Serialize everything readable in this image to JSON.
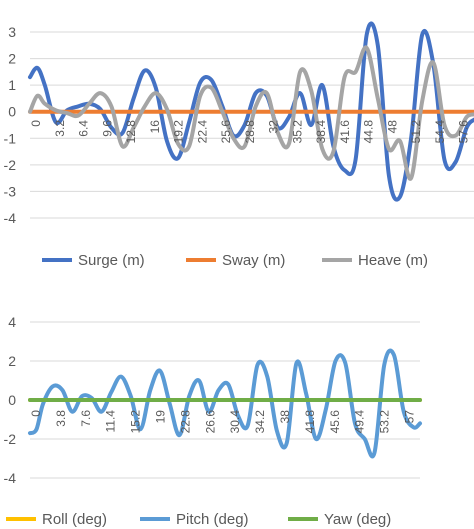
{
  "chart_data": [
    {
      "type": "line",
      "ylim": [
        -4,
        3
      ],
      "yticks": [
        -4,
        -3,
        -2,
        -1,
        0,
        1,
        2,
        3
      ],
      "xlim": [
        0,
        60
      ],
      "xticks": [
        "0",
        "3.2",
        "6.4",
        "9.6",
        "12.8",
        "16",
        "19.2",
        "22.4",
        "25.6",
        "28.8",
        "32",
        "35.2",
        "38.4",
        "41.6",
        "44.8",
        "48",
        "51.2",
        "54.4",
        "57.6"
      ],
      "grid": true,
      "legend": "bottom",
      "series": [
        {
          "name": "Surge (m)",
          "color": "#4472c4",
          "x": [
            0,
            1,
            2,
            3.5,
            5,
            6.5,
            8,
            9.5,
            11,
            12.5,
            14,
            15.5,
            17,
            18.5,
            20,
            21.5,
            23,
            24.5,
            26,
            27.5,
            29,
            30.5,
            32,
            33.5,
            35,
            36.5,
            38,
            39.5,
            41,
            42.5,
            44,
            45.5,
            47,
            48.5,
            50,
            51.5,
            53,
            54.5,
            56,
            57.5,
            59,
            60
          ],
          "y": [
            1.3,
            1.65,
            1.0,
            -0.4,
            0.05,
            0.2,
            0.3,
            0.1,
            -0.6,
            -0.8,
            0.5,
            1.55,
            0.9,
            -1.1,
            -1.75,
            -0.4,
            1.1,
            1.2,
            0.2,
            -0.9,
            -0.5,
            0.7,
            0.6,
            -0.6,
            -0.2,
            0.7,
            -0.5,
            1.0,
            -1.3,
            -2.2,
            -1.8,
            2.9,
            2.5,
            -2.4,
            -3.2,
            -1.0,
            2.9,
            1.8,
            -1.8,
            -1.9,
            -0.6,
            -0.3
          ]
        },
        {
          "name": "Sway (m)",
          "color": "#ed7d31",
          "x": [
            0,
            60
          ],
          "y": [
            0,
            0
          ]
        },
        {
          "name": "Heave (m)",
          "color": "#a5a5a5",
          "x": [
            0,
            1,
            2,
            3.5,
            5,
            6.5,
            8,
            9.5,
            11,
            12.5,
            14,
            15.5,
            17,
            18.5,
            20,
            21.5,
            23,
            24.5,
            26,
            27.5,
            29,
            30.5,
            32,
            33.5,
            35,
            36.5,
            38,
            39.5,
            41,
            42.5,
            44,
            45.5,
            47,
            48.5,
            50,
            51.5,
            53,
            54.5,
            56,
            57.5,
            59,
            60
          ],
          "y": [
            0.0,
            0.6,
            0.3,
            0.05,
            -0.05,
            -0.15,
            0.3,
            0.7,
            0.2,
            -1.3,
            -0.6,
            0.2,
            0.7,
            0.1,
            -1.2,
            -1.3,
            0.6,
            0.9,
            0.0,
            -1.0,
            -1.3,
            0.2,
            0.7,
            -0.8,
            -1.2,
            1.5,
            0.8,
            -1.4,
            -1.5,
            1.3,
            1.5,
            2.4,
            0.5,
            -1.4,
            -1.1,
            -2.5,
            0.4,
            1.85,
            -0.5,
            -0.9,
            -0.2,
            -0.1
          ]
        }
      ]
    },
    {
      "type": "line",
      "ylim": [
        -4,
        4
      ],
      "yticks": [
        -4,
        -2,
        0,
        2,
        4
      ],
      "xlim": [
        0,
        60
      ],
      "xticks": [
        "0",
        "3.8",
        "7.6",
        "11.4",
        "15.2",
        "19",
        "22.8",
        "26.6",
        "30.4",
        "34.2",
        "38",
        "41.8",
        "45.6",
        "49.4",
        "53.2",
        "57"
      ],
      "grid": true,
      "legend": "bottom",
      "series": [
        {
          "name": "Roll (deg)",
          "color": "#ffc000",
          "x": [
            0,
            60
          ],
          "y": [
            0,
            0
          ]
        },
        {
          "name": "Pitch (deg)",
          "color": "#5b9bd5",
          "x": [
            0,
            1,
            2,
            3.5,
            5,
            6.5,
            8,
            9.5,
            11,
            12.5,
            14,
            15.5,
            17,
            18.5,
            20,
            21.5,
            23,
            24.5,
            26,
            27.5,
            29,
            30.5,
            32,
            33.5,
            35,
            36.5,
            38,
            39.5,
            41,
            42.5,
            44,
            45.5,
            47,
            48.5,
            50,
            51.5,
            53,
            54.5,
            56,
            57.5,
            59,
            60
          ],
          "y": [
            -1.7,
            -1.5,
            -0.2,
            0.7,
            0.5,
            -0.6,
            0.2,
            0.1,
            -0.6,
            0.4,
            1.2,
            0.2,
            -1.5,
            0.5,
            1.5,
            -0.2,
            -1.8,
            0.2,
            1.0,
            -0.6,
            0.5,
            0.8,
            -0.8,
            -1.3,
            1.8,
            1.2,
            -1.6,
            -2.2,
            1.9,
            0.3,
            -2.0,
            -0.5,
            2.0,
            1.9,
            -1.2,
            -2.0,
            -2.7,
            1.8,
            2.3,
            -0.6,
            -1.4,
            -1.2
          ]
        },
        {
          "name": "Yaw (deg)",
          "color": "#70ad47",
          "x": [
            0,
            60
          ],
          "y": [
            0,
            0
          ]
        }
      ]
    }
  ]
}
